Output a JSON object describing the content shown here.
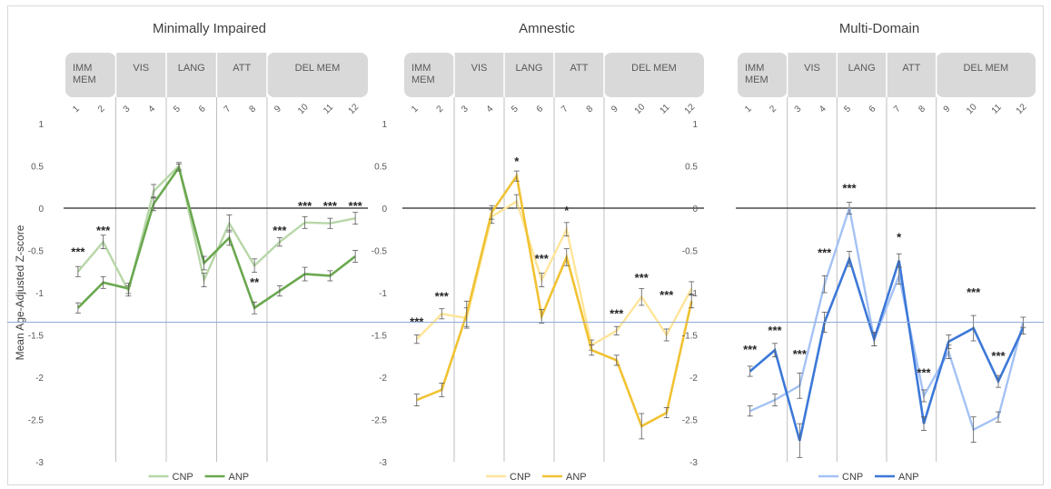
{
  "figure": {
    "ylabel": "Mean Age-Adjusted Z-score",
    "ylim": [
      -3,
      1
    ],
    "yticks": [
      1,
      0.5,
      0,
      -0.5,
      -1,
      -1.5,
      -2,
      -2.5,
      -3
    ],
    "reference_line": -1.35
  },
  "chart_data": [
    {
      "type": "line",
      "title": "Minimally Impaired",
      "ylabel": "Mean Age-Adjusted Z-score",
      "ylim": [
        -3,
        1
      ],
      "x": [
        "1",
        "2",
        "3",
        "4",
        "5",
        "6",
        "7",
        "8",
        "9",
        "10",
        "11",
        "12"
      ],
      "domains": [
        {
          "label": "IMM\nMEM",
          "tests": 2
        },
        {
          "label": "VIS",
          "tests": 2
        },
        {
          "label": "LANG",
          "tests": 2
        },
        {
          "label": "ATT",
          "tests": 2
        },
        {
          "label": "DEL MEM",
          "tests": 4
        }
      ],
      "series": [
        {
          "name": "CNP",
          "color": "#b7d7a8",
          "values": [
            -0.75,
            -0.4,
            -0.98,
            0.2,
            0.5,
            -0.85,
            -0.18,
            -0.68,
            -0.4,
            -0.17,
            -0.18,
            -0.12
          ],
          "errors": [
            0.06,
            0.08,
            0.06,
            0.08,
            0.04,
            0.08,
            0.1,
            0.08,
            0.05,
            0.07,
            0.06,
            0.07
          ]
        },
        {
          "name": "ANP",
          "color": "#6aa84f",
          "values": [
            -1.18,
            -0.88,
            -0.95,
            0.05,
            0.48,
            -0.65,
            -0.35,
            -1.18,
            -0.98,
            -0.78,
            -0.8,
            -0.57
          ],
          "errors": [
            0.06,
            0.07,
            0.06,
            0.08,
            0.04,
            0.08,
            0.09,
            0.07,
            0.06,
            0.08,
            0.06,
            0.07
          ]
        }
      ],
      "annotations": [
        {
          "x": "1",
          "text": "***",
          "y": -0.52
        },
        {
          "x": "2",
          "text": "***",
          "y": -0.27
        },
        {
          "x": "8",
          "text": "**",
          "y": -0.88
        },
        {
          "x": "9",
          "text": "***",
          "y": -0.27
        },
        {
          "x": "10",
          "text": "***",
          "y": 0.02
        },
        {
          "x": "11",
          "text": "***",
          "y": 0.02
        },
        {
          "x": "12",
          "text": "***",
          "y": 0.02
        }
      ],
      "legend": [
        "CNP",
        "ANP"
      ],
      "legend_position": "bottom"
    },
    {
      "type": "line",
      "title": "Amnestic",
      "ylabel": "",
      "ylim": [
        -3,
        1
      ],
      "x": [
        "1",
        "2",
        "3",
        "4",
        "5",
        "6",
        "7",
        "8",
        "9",
        "10",
        "11",
        "12"
      ],
      "domains": [
        {
          "label": "IMM\nMEM",
          "tests": 2
        },
        {
          "label": "VIS",
          "tests": 2
        },
        {
          "label": "LANG",
          "tests": 2
        },
        {
          "label": "ATT",
          "tests": 2
        },
        {
          "label": "DEL MEM",
          "tests": 4
        }
      ],
      "series": [
        {
          "name": "CNP",
          "color": "#ffe599",
          "values": [
            -1.55,
            -1.25,
            -1.3,
            -0.1,
            0.08,
            -0.85,
            -0.25,
            -1.62,
            -1.45,
            -1.05,
            -1.5,
            -0.95
          ],
          "errors": [
            0.05,
            0.06,
            0.12,
            0.08,
            0.08,
            0.08,
            0.08,
            0.06,
            0.05,
            0.1,
            0.07,
            0.08
          ]
        },
        {
          "name": "ANP",
          "color": "#f1c232",
          "values": [
            -2.27,
            -2.15,
            -1.25,
            -0.05,
            0.38,
            -1.28,
            -0.58,
            -1.68,
            -1.8,
            -2.58,
            -2.42,
            -1.1
          ],
          "errors": [
            0.07,
            0.08,
            0.15,
            0.08,
            0.06,
            0.08,
            0.1,
            0.06,
            0.06,
            0.15,
            0.06,
            0.08
          ]
        }
      ],
      "annotations": [
        {
          "x": "1",
          "text": "***",
          "y": -1.35
        },
        {
          "x": "2",
          "text": "***",
          "y": -1.05
        },
        {
          "x": "5",
          "text": "*",
          "y": 0.55
        },
        {
          "x": "6",
          "text": "***",
          "y": -0.6
        },
        {
          "x": "7",
          "text": "*",
          "y": -0.03
        },
        {
          "x": "9",
          "text": "***",
          "y": -1.25
        },
        {
          "x": "10",
          "text": "***",
          "y": -0.83
        },
        {
          "x": "11",
          "text": "***",
          "y": -1.03
        }
      ],
      "legend": [
        "CNP",
        "ANP"
      ],
      "legend_position": "bottom"
    },
    {
      "type": "line",
      "title": "Multi-Domain",
      "ylabel": "",
      "ylim": [
        -3,
        1
      ],
      "x": [
        "1",
        "2",
        "3",
        "4",
        "5",
        "6",
        "7",
        "8",
        "9",
        "10",
        "11",
        "12"
      ],
      "domains": [
        {
          "label": "IMM\nMEM",
          "tests": 2
        },
        {
          "label": "VIS",
          "tests": 2
        },
        {
          "label": "LANG",
          "tests": 2
        },
        {
          "label": "ATT",
          "tests": 2
        },
        {
          "label": "DEL MEM",
          "tests": 4
        }
      ],
      "series": [
        {
          "name": "CNP",
          "color": "#a4c2f4",
          "values": [
            -2.4,
            -2.27,
            -2.1,
            -0.9,
            0.0,
            -1.55,
            -0.8,
            -2.22,
            -1.7,
            -2.62,
            -2.47,
            -1.35
          ],
          "errors": [
            0.06,
            0.07,
            0.15,
            0.1,
            0.07,
            0.08,
            0.1,
            0.07,
            0.08,
            0.15,
            0.06,
            0.06
          ]
        },
        {
          "name": "ANP",
          "color": "#3c78d8",
          "values": [
            -1.93,
            -1.68,
            -2.75,
            -1.35,
            -0.6,
            -1.55,
            -0.62,
            -2.55,
            -1.58,
            -1.42,
            -2.05,
            -1.42
          ],
          "errors": [
            0.06,
            0.08,
            0.2,
            0.12,
            0.09,
            0.08,
            0.08,
            0.08,
            0.08,
            0.15,
            0.07,
            0.07
          ]
        }
      ],
      "annotations": [
        {
          "x": "1",
          "text": "***",
          "y": -1.68
        },
        {
          "x": "2",
          "text": "***",
          "y": -1.45
        },
        {
          "x": "3",
          "text": "***",
          "y": -1.73
        },
        {
          "x": "4",
          "text": "***",
          "y": -0.53
        },
        {
          "x": "5",
          "text": "***",
          "y": 0.23
        },
        {
          "x": "7",
          "text": "*",
          "y": -0.35
        },
        {
          "x": "8",
          "text": "***",
          "y": -1.95
        },
        {
          "x": "10",
          "text": "***",
          "y": -1.0
        },
        {
          "x": "11",
          "text": "***",
          "y": -1.75
        }
      ],
      "legend": [
        "CNP",
        "ANP"
      ],
      "legend_position": "bottom"
    }
  ]
}
